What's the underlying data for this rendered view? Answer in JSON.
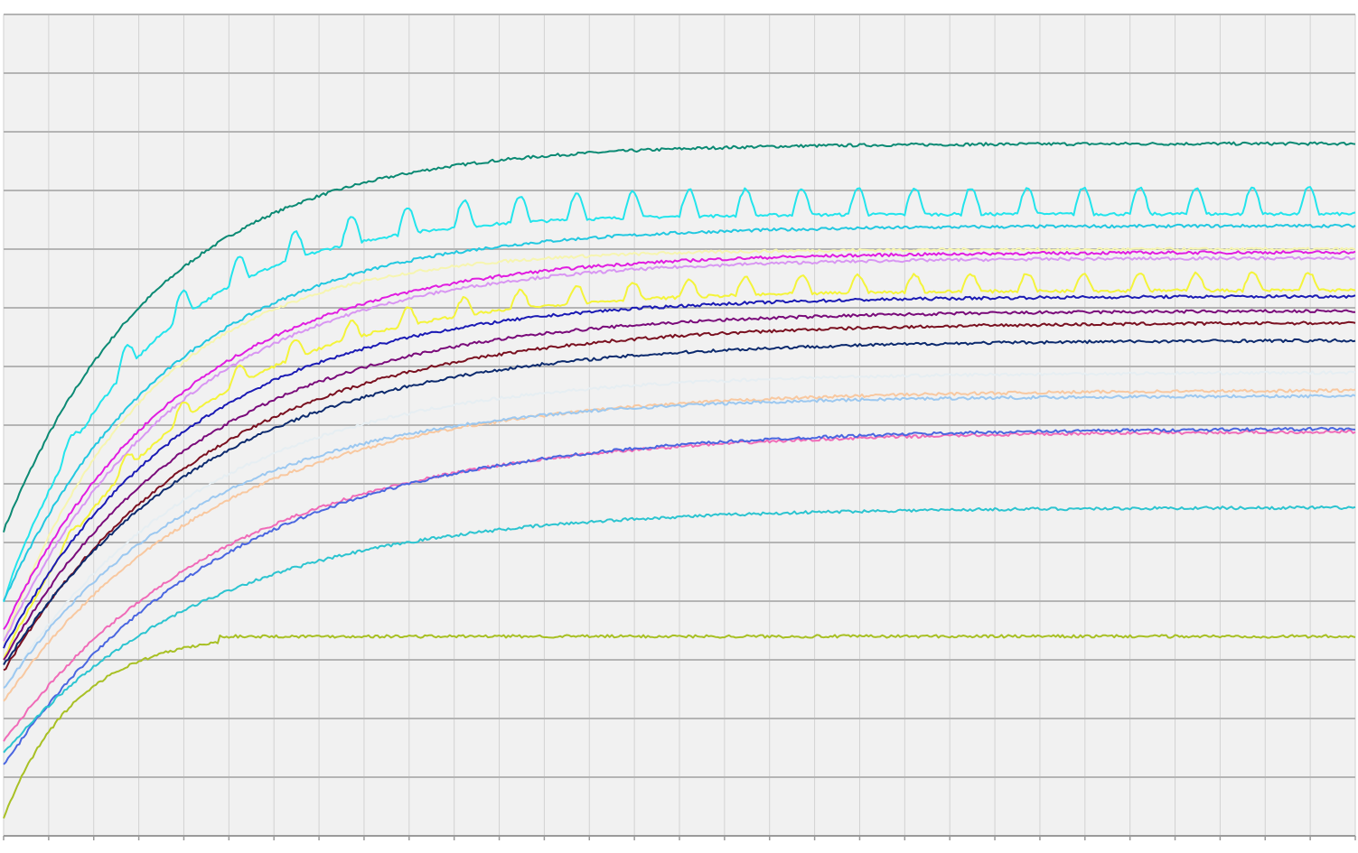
{
  "chart_data": {
    "type": "line",
    "title": "",
    "xlabel": "",
    "ylabel": "",
    "xlim": [
      0,
      30
    ],
    "ylim": [
      0,
      14
    ],
    "grid": {
      "x_major": 30,
      "y_major": 14,
      "x_minor": true
    },
    "legend": "none",
    "background": "#f1f1f1",
    "series": [
      {
        "color": "#0b8a74",
        "start": 5.2,
        "plateau": 11.8,
        "tau": 3.5
      },
      {
        "color": "#22e4ec",
        "start": 4.0,
        "plateau": 10.6,
        "tau": 3.0,
        "pulse": 0.45,
        "period": 1.25
      },
      {
        "color": "#22c8e0",
        "start": 4.0,
        "plateau": 10.4,
        "tau": 3.8
      },
      {
        "color": "#f6f5b0",
        "start": 3.3,
        "plateau": 10.0,
        "tau": 3.2
      },
      {
        "color": "#e01de0",
        "start": 3.5,
        "plateau": 9.95,
        "tau": 4.0
      },
      {
        "color": "#d896f2",
        "start": 3.3,
        "plateau": 9.85,
        "tau": 4.0
      },
      {
        "color": "#f4f43a",
        "start": 3.0,
        "plateau": 9.3,
        "tau": 3.8,
        "pulse": 0.3,
        "period": 1.25
      },
      {
        "color": "#1a1ab4",
        "start": 3.2,
        "plateau": 9.2,
        "tau": 4.2
      },
      {
        "color": "#7a0b7a",
        "start": 3.0,
        "plateau": 8.95,
        "tau": 4.4
      },
      {
        "color": "#7a1020",
        "start": 2.8,
        "plateau": 8.75,
        "tau": 4.6
      },
      {
        "color": "#0c2a6e",
        "start": 2.9,
        "plateau": 8.45,
        "tau": 4.6
      },
      {
        "color": "#e6eef2",
        "start": 2.5,
        "plateau": 7.9,
        "tau": 4.4
      },
      {
        "color": "#f8c8a0",
        "start": 2.3,
        "plateau": 7.6,
        "tau": 4.8
      },
      {
        "color": "#9cc8f0",
        "start": 2.5,
        "plateau": 7.5,
        "tau": 4.4
      },
      {
        "color": "#f06bb8",
        "start": 1.6,
        "plateau": 6.9,
        "tau": 5.0
      },
      {
        "color": "#4a66e0",
        "start": 1.2,
        "plateau": 6.95,
        "tau": 5.0
      },
      {
        "color": "#2cc4d0",
        "start": 1.4,
        "plateau": 5.6,
        "tau": 4.6
      },
      {
        "color": "#a8c024",
        "start": 0.3,
        "plateau": 3.4,
        "tau": 3.2,
        "peak": 3.3,
        "peak_x": 4.8
      }
    ]
  }
}
